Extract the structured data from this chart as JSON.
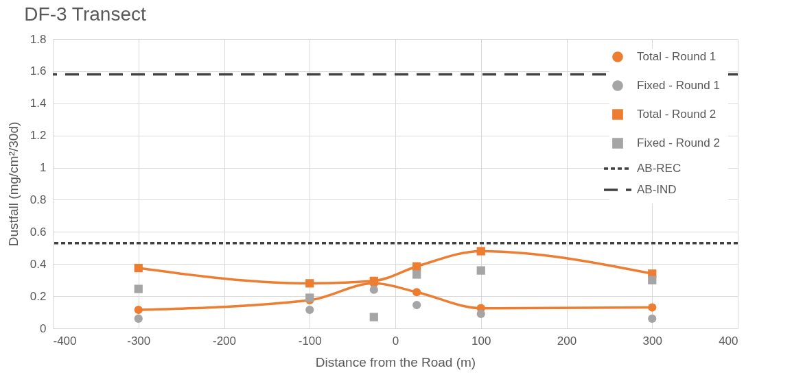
{
  "chart_data": {
    "type": "line",
    "title": "DF-3 Transect",
    "xlabel": "Distance from the Road (m)",
    "ylabel": "Dustfall (mg/cm²/30d)",
    "x": [
      -300,
      -100,
      -25,
      25,
      100,
      300
    ],
    "series": [
      {
        "name": "Total - Round 1",
        "marker": "circle",
        "color": "#ed7d31",
        "values": [
          0.115,
          0.175,
          0.28,
          0.225,
          0.125,
          0.13
        ]
      },
      {
        "name": "Fixed - Round 1",
        "type": "scatter",
        "marker": "circle",
        "color": "#a5a5a5",
        "values": [
          0.06,
          0.115,
          0.24,
          0.145,
          0.09,
          0.06
        ]
      },
      {
        "name": "Total - Round 2",
        "marker": "square",
        "color": "#ed7d31",
        "values": [
          0.375,
          0.28,
          0.295,
          0.385,
          0.48,
          0.34
        ]
      },
      {
        "name": "Fixed - Round 2",
        "type": "scatter",
        "marker": "square",
        "color": "#a5a5a5",
        "values": [
          0.245,
          0.19,
          0.07,
          0.335,
          0.36,
          0.3
        ]
      }
    ],
    "ref_lines": [
      {
        "axis": "y",
        "value": 0.53,
        "label": "AB-REC",
        "color": "#404040",
        "line_style": "dotted"
      },
      {
        "axis": "y",
        "value": 1.58,
        "label": "AB-IND",
        "color": "#404040",
        "line_style": "dashed"
      }
    ],
    "xlim": [
      -400,
      400
    ],
    "xticks": [
      -400,
      -300,
      -200,
      -100,
      0,
      100,
      200,
      300,
      400
    ],
    "ylim": [
      0,
      1.8
    ],
    "yticks": [
      0,
      0.2,
      0.4,
      0.6,
      0.8,
      1,
      1.2,
      1.4,
      1.6,
      1.8
    ],
    "grid": true,
    "legend": "top right"
  }
}
